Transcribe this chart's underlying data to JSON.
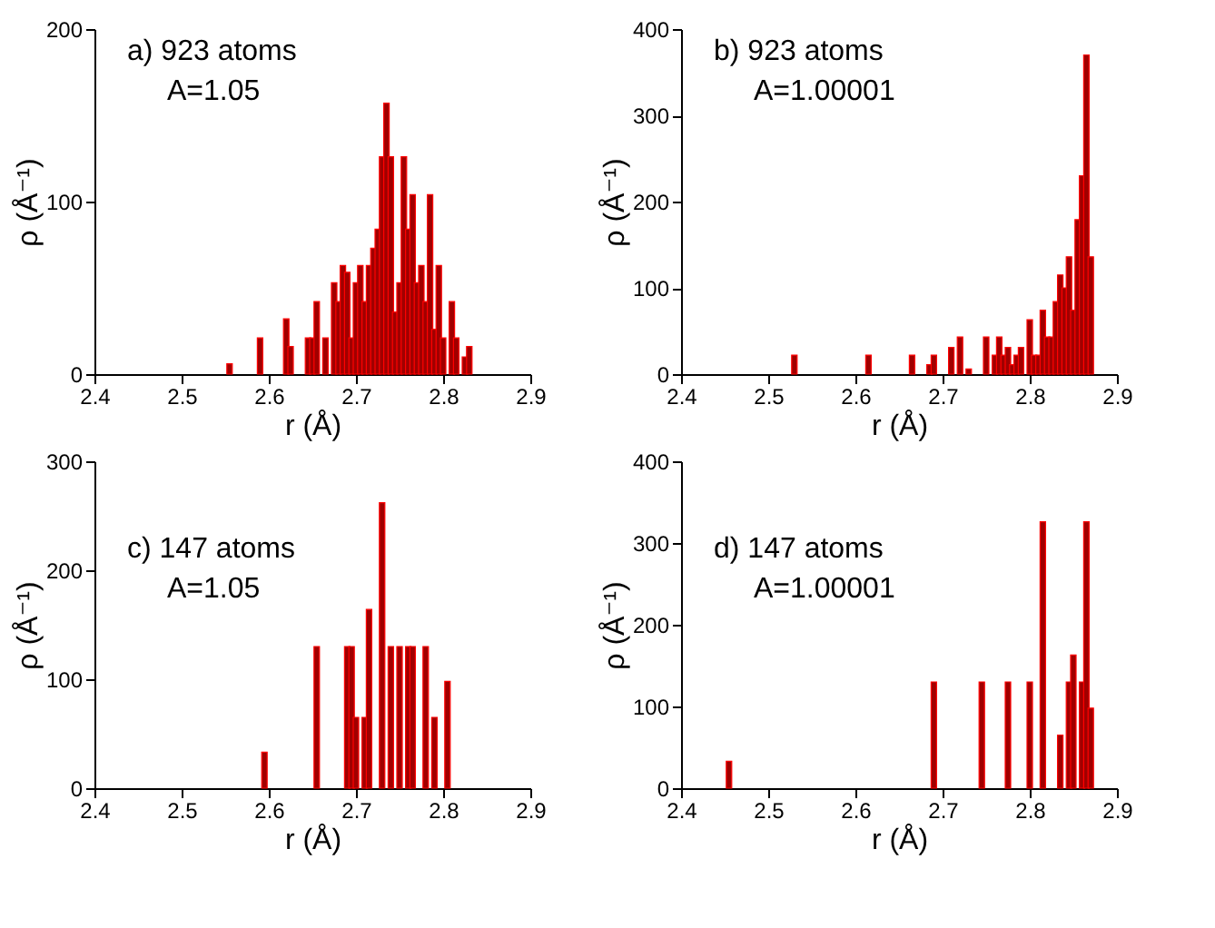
{
  "chart_data": [
    {
      "type": "bar",
      "xlabel": "r (Å)",
      "ylabel": "ρ (Å⁻¹)",
      "annotations": [
        "a)  923 atoms",
        "A=1.05"
      ],
      "xlim": [
        2.4,
        2.9
      ],
      "xticks": [
        2.4,
        2.5,
        2.6,
        2.7,
        2.8,
        2.9
      ],
      "ylim": [
        0,
        200
      ],
      "yticks": [
        0,
        100,
        200
      ],
      "x": [
        2.555,
        2.59,
        2.62,
        2.625,
        2.645,
        2.65,
        2.655,
        2.665,
        2.675,
        2.68,
        2.685,
        2.69,
        2.695,
        2.7,
        2.705,
        2.71,
        2.715,
        2.72,
        2.725,
        2.73,
        2.735,
        2.74,
        2.745,
        2.75,
        2.755,
        2.76,
        2.765,
        2.77,
        2.775,
        2.78,
        2.785,
        2.79,
        2.795,
        2.8,
        2.81,
        2.815,
        2.825,
        2.83
      ],
      "values": [
        6,
        21,
        32,
        16,
        21,
        21,
        42,
        21,
        53,
        42,
        63,
        59,
        21,
        53,
        63,
        42,
        63,
        73,
        84,
        126,
        157,
        126,
        36,
        53,
        126,
        84,
        104,
        53,
        63,
        42,
        104,
        26,
        63,
        21,
        42,
        21,
        10,
        16
      ],
      "color": "#a00000"
    },
    {
      "type": "bar",
      "xlabel": "r (Å)",
      "ylabel": "ρ (Å⁻¹)",
      "annotations": [
        "b)  923 atoms",
        "A=1.00001"
      ],
      "xlim": [
        2.4,
        2.9
      ],
      "xticks": [
        2.4,
        2.5,
        2.6,
        2.7,
        2.8,
        2.9
      ],
      "ylim": [
        0,
        400
      ],
      "yticks": [
        0,
        100,
        200,
        300,
        400
      ],
      "x": [
        2.53,
        2.615,
        2.665,
        2.685,
        2.69,
        2.71,
        2.72,
        2.73,
        2.75,
        2.76,
        2.765,
        2.77,
        2.775,
        2.78,
        2.785,
        2.79,
        2.8,
        2.805,
        2.81,
        2.815,
        2.82,
        2.825,
        2.83,
        2.835,
        2.84,
        2.845,
        2.85,
        2.855,
        2.86,
        2.865,
        2.87
      ],
      "values": [
        22,
        22,
        22,
        11,
        22,
        31,
        43,
        6,
        43,
        22,
        43,
        22,
        31,
        11,
        22,
        31,
        63,
        22,
        22,
        74,
        43,
        43,
        84,
        115,
        100,
        136,
        74,
        179,
        230,
        370,
        136
      ],
      "color": "#a00000"
    },
    {
      "type": "bar",
      "xlabel": "r (Å)",
      "ylabel": "ρ (Å⁻¹)",
      "annotations": [
        "c)  147 atoms",
        "A=1.05"
      ],
      "xlim": [
        2.4,
        2.9
      ],
      "xticks": [
        2.4,
        2.5,
        2.6,
        2.7,
        2.8,
        2.9
      ],
      "ylim": [
        0,
        300
      ],
      "yticks": [
        0,
        100,
        200,
        300
      ],
      "x": [
        2.595,
        2.655,
        2.69,
        2.695,
        2.7,
        2.71,
        2.715,
        2.73,
        2.74,
        2.75,
        2.76,
        2.765,
        2.78,
        2.79,
        2.805
      ],
      "values": [
        33,
        130,
        130,
        130,
        65,
        65,
        164,
        262,
        130,
        130,
        130,
        130,
        130,
        65,
        98
      ],
      "color": "#a00000"
    },
    {
      "type": "bar",
      "xlabel": "r (Å)",
      "ylabel": "ρ (Å⁻¹)",
      "annotations": [
        "d)  147 atoms",
        "A=1.00001"
      ],
      "xlim": [
        2.4,
        2.9
      ],
      "xticks": [
        2.4,
        2.5,
        2.6,
        2.7,
        2.8,
        2.9
      ],
      "ylim": [
        0,
        400
      ],
      "yticks": [
        0,
        100,
        200,
        300,
        400
      ],
      "x": [
        2.455,
        2.69,
        2.745,
        2.775,
        2.8,
        2.815,
        2.835,
        2.845,
        2.85,
        2.86,
        2.865,
        2.87
      ],
      "values": [
        33,
        130,
        130,
        130,
        130,
        326,
        65,
        130,
        163,
        130,
        326,
        98
      ],
      "color": "#a00000"
    }
  ]
}
